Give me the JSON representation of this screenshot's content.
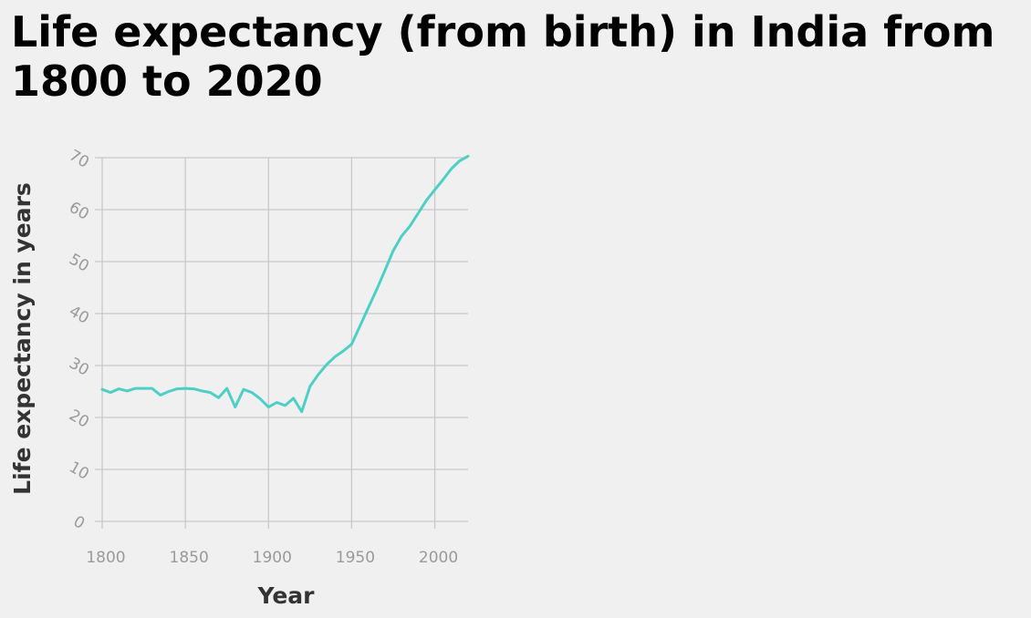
{
  "chart_data": {
    "type": "line",
    "title": "Life expectancy (from birth) in India from 1800 to 2020",
    "xlabel": "Year",
    "ylabel": "Life expectancy in years",
    "xlim": [
      1800,
      2020
    ],
    "ylim": [
      0,
      70
    ],
    "x_ticks": [
      1800,
      1850,
      1900,
      1950,
      2000
    ],
    "y_ticks": [
      0,
      10,
      20,
      30,
      40,
      50,
      60,
      70
    ],
    "grid": true,
    "line_color": "#4ecfc6",
    "grid_color": "#c8c8c8",
    "series": [
      {
        "x": [
          1800,
          1805,
          1810,
          1815,
          1820,
          1825,
          1830,
          1835,
          1840,
          1845,
          1850,
          1855,
          1860,
          1865,
          1870,
          1875,
          1880,
          1885,
          1890,
          1895,
          1900,
          1905,
          1910,
          1915,
          1920,
          1925,
          1930,
          1935,
          1940,
          1945,
          1950,
          1955,
          1960,
          1965,
          1970,
          1975,
          1980,
          1985,
          1990,
          1995,
          2000,
          2005,
          2010,
          2015,
          2020
        ],
        "values": [
          25.4,
          24.8,
          25.5,
          25.1,
          25.6,
          25.6,
          25.6,
          24.3,
          25.0,
          25.5,
          25.6,
          25.5,
          25.1,
          24.8,
          23.8,
          25.6,
          22.0,
          25.4,
          24.8,
          23.6,
          22.0,
          22.9,
          22.3,
          23.7,
          21.1,
          26.0,
          28.3,
          30.2,
          31.7,
          32.8,
          34.1,
          37.6,
          41.1,
          44.6,
          48.3,
          52.1,
          54.9,
          56.8,
          59.3,
          61.8,
          63.8,
          65.8,
          67.9,
          69.4,
          70.3
        ]
      }
    ]
  }
}
